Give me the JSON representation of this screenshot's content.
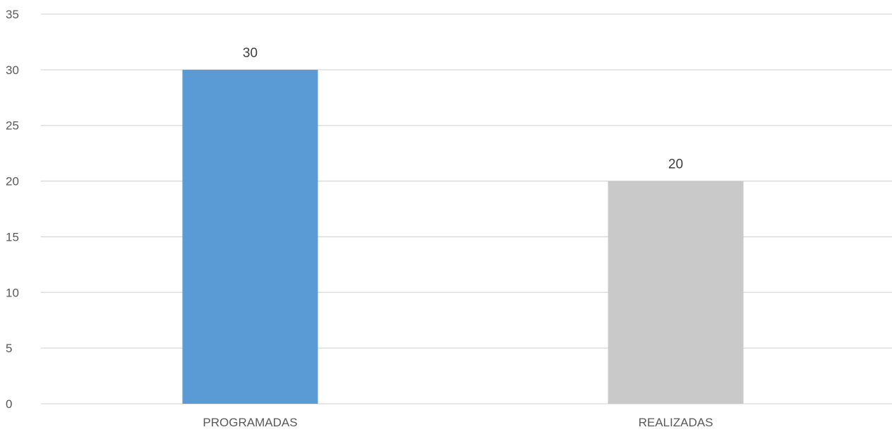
{
  "chart_data": {
    "type": "bar",
    "title": "",
    "xlabel": "",
    "ylabel": "",
    "categories": [
      "PROGRAMADAS",
      "REALIZADAS"
    ],
    "values": [
      30,
      20
    ],
    "data_labels": [
      "30",
      "20"
    ],
    "bar_colors": [
      "#5b9bd5",
      "#c9c9c9"
    ],
    "ylim": [
      0,
      35
    ],
    "yticks": [
      0,
      5,
      10,
      15,
      20,
      25,
      30,
      35
    ],
    "ytick_labels": [
      "0",
      "5",
      "10",
      "15",
      "20",
      "25",
      "30",
      "35"
    ],
    "grid": true,
    "grid_color": "#d9d9d9",
    "legend": "none"
  }
}
